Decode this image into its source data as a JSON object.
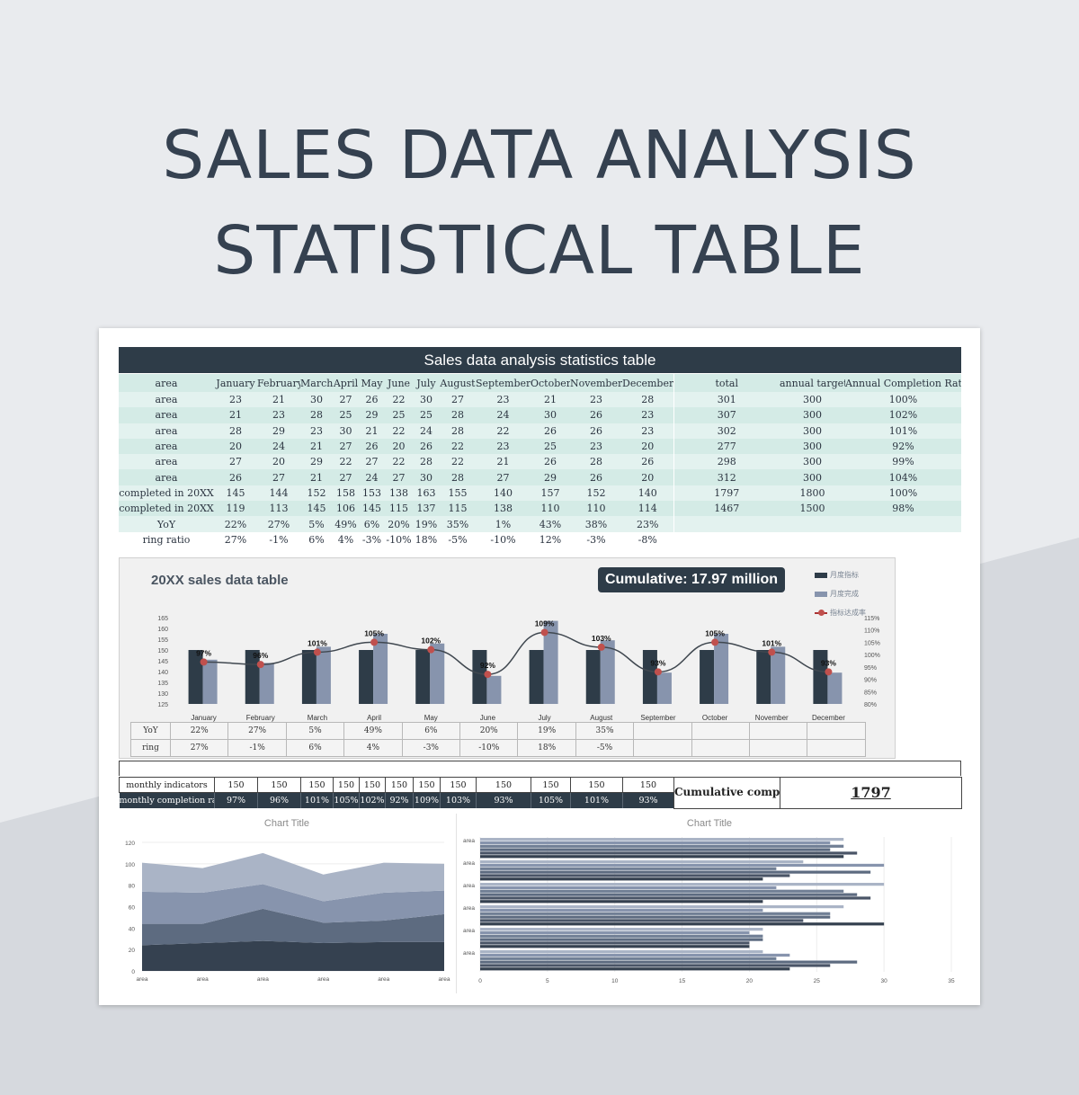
{
  "heading": {
    "line1": "SALES DATA ANALYSIS",
    "line2": "STATISTICAL TABLE"
  },
  "colors": {
    "dark": "#2e3c48",
    "mid": "#8794ad",
    "teal_row": "#d4ebe6",
    "teal_row_alt": "#e3f2ef",
    "marker": "#c0504d"
  },
  "table": {
    "title": "Sales data analysis statistics table",
    "headers": [
      "area",
      "January",
      "February",
      "March",
      "April",
      "May",
      "June",
      "July",
      "August",
      "September",
      "October",
      "November",
      "December",
      "total",
      "annual target",
      "Annual Completion Rate"
    ],
    "rows": [
      [
        "area",
        "23",
        "21",
        "30",
        "27",
        "26",
        "22",
        "30",
        "27",
        "23",
        "21",
        "23",
        "28",
        "301",
        "300",
        "100%"
      ],
      [
        "area",
        "21",
        "23",
        "28",
        "25",
        "29",
        "25",
        "25",
        "28",
        "24",
        "30",
        "26",
        "23",
        "307",
        "300",
        "102%"
      ],
      [
        "area",
        "28",
        "29",
        "23",
        "30",
        "21",
        "22",
        "24",
        "28",
        "22",
        "26",
        "26",
        "23",
        "302",
        "300",
        "101%"
      ],
      [
        "area",
        "20",
        "24",
        "21",
        "27",
        "26",
        "20",
        "26",
        "22",
        "23",
        "25",
        "23",
        "20",
        "277",
        "300",
        "92%"
      ],
      [
        "area",
        "27",
        "20",
        "29",
        "22",
        "27",
        "22",
        "28",
        "22",
        "21",
        "26",
        "28",
        "26",
        "298",
        "300",
        "99%"
      ],
      [
        "area",
        "26",
        "27",
        "21",
        "27",
        "24",
        "27",
        "30",
        "28",
        "27",
        "29",
        "26",
        "20",
        "312",
        "300",
        "104%"
      ],
      [
        "completed in 20XX",
        "145",
        "144",
        "152",
        "158",
        "153",
        "138",
        "163",
        "155",
        "140",
        "157",
        "152",
        "140",
        "1797",
        "1800",
        "100%"
      ],
      [
        "completed in 20XX",
        "119",
        "113",
        "145",
        "106",
        "145",
        "115",
        "137",
        "115",
        "138",
        "110",
        "110",
        "114",
        "1467",
        "1500",
        "98%"
      ],
      [
        "YoY",
        "22%",
        "27%",
        "5%",
        "49%",
        "6%",
        "20%",
        "19%",
        "35%",
        "1%",
        "43%",
        "38%",
        "23%",
        "",
        "",
        ""
      ],
      [
        "ring ratio",
        "27%",
        "-1%",
        "6%",
        "4%",
        "-3%",
        "-10%",
        "18%",
        "-5%",
        "-10%",
        "12%",
        "-3%",
        "-8%",
        "",
        "",
        ""
      ]
    ]
  },
  "combo": {
    "title": "20XX sales data table",
    "cumulative": "Cumulative: 17.97 million",
    "legend": [
      "月度指标",
      "月度完成",
      "指标达成率"
    ],
    "left_ticks": [
      "165",
      "160",
      "155",
      "150",
      "145",
      "140",
      "135",
      "130",
      "125"
    ],
    "right_ticks": [
      "115%",
      "110%",
      "105%",
      "100%",
      "95%",
      "90%",
      "85%",
      "80%"
    ],
    "sub_rows": [
      {
        "label": "YoY",
        "values": [
          "22%",
          "27%",
          "5%",
          "49%",
          "6%",
          "20%",
          "19%",
          "35%",
          "",
          "",
          "",
          ""
        ]
      },
      {
        "label": "ring",
        "values": [
          "27%",
          "-1%",
          "6%",
          "4%",
          "-3%",
          "-10%",
          "18%",
          "-5%",
          "",
          "",
          "",
          ""
        ]
      }
    ]
  },
  "indicators": {
    "row1_label": "monthly indicators",
    "row1_values": [
      "150",
      "150",
      "150",
      "150",
      "150",
      "150",
      "150",
      "150",
      "150",
      "150",
      "150",
      "150"
    ],
    "row2_label": "monthly completion rate",
    "row2_values": [
      "97%",
      "96%",
      "101%",
      "105%",
      "102%",
      "92%",
      "109%",
      "103%",
      "93%",
      "105%",
      "101%",
      "93%"
    ],
    "cumulative_label": "Cumulative completed",
    "cumulative_value": "1797"
  },
  "chart_data": [
    {
      "type": "bar",
      "title": "20XX sales data table",
      "categories": [
        "January",
        "February",
        "March",
        "April",
        "May",
        "June",
        "July",
        "August",
        "September",
        "October",
        "November",
        "December"
      ],
      "series": [
        {
          "name": "月度指标",
          "values": [
            150,
            150,
            150,
            150,
            150,
            150,
            150,
            150,
            150,
            150,
            150,
            150
          ]
        },
        {
          "name": "月度完成",
          "values": [
            145.5,
            144,
            151.5,
            157.5,
            153,
            138,
            163.5,
            154.5,
            139.5,
            157.5,
            151.5,
            139.5
          ]
        },
        {
          "name": "指标达成率",
          "values": [
            97,
            96,
            101,
            105,
            102,
            92,
            109,
            103,
            93,
            105,
            101,
            93
          ]
        }
      ],
      "ylim": [
        125,
        165
      ],
      "y2lim": [
        80,
        115
      ],
      "grid": false,
      "legend": "right"
    },
    {
      "type": "area",
      "title": "Chart Title",
      "categories": [
        "area",
        "area",
        "area",
        "area",
        "area",
        "area"
      ],
      "series": [
        {
          "values": [
            24,
            26,
            28,
            26,
            27,
            27
          ]
        },
        {
          "values": [
            20,
            18,
            30,
            19,
            20,
            26
          ]
        },
        {
          "values": [
            30,
            29,
            23,
            20,
            26,
            22
          ]
        },
        {
          "values": [
            27,
            23,
            29,
            25,
            28,
            25
          ]
        }
      ],
      "ylim": [
        0,
        120
      ],
      "yticks": [
        0,
        20,
        40,
        60,
        80,
        100,
        120
      ]
    },
    {
      "type": "bar",
      "orientation": "horizontal",
      "title": "Chart Title",
      "categories": [
        "area",
        "area",
        "area",
        "area",
        "area",
        "area"
      ],
      "series": [
        {
          "values": [
            23,
            20,
            30,
            21,
            21,
            27
          ]
        },
        {
          "values": [
            26,
            20,
            24,
            29,
            23,
            28
          ]
        },
        {
          "values": [
            28,
            21,
            26,
            28,
            29,
            26
          ]
        },
        {
          "values": [
            22,
            21,
            26,
            27,
            22,
            27
          ]
        },
        {
          "values": [
            23,
            20,
            21,
            22,
            30,
            26
          ]
        },
        {
          "values": [
            21,
            21,
            27,
            30,
            24,
            27
          ]
        }
      ],
      "xlim": [
        0,
        35
      ],
      "xticks": [
        0,
        5,
        10,
        15,
        20,
        25,
        30,
        35
      ]
    }
  ]
}
